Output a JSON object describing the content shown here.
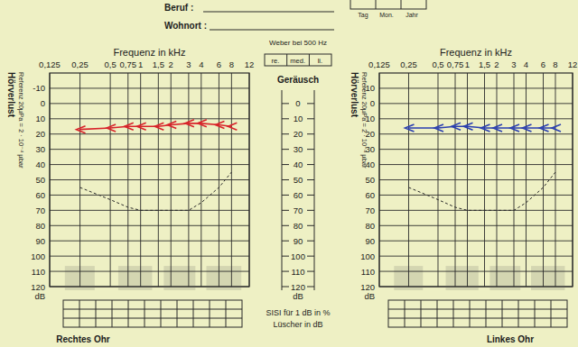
{
  "form": {
    "occupation": "Beruf :",
    "residence": "Wohnort :",
    "date_fields": [
      "Tag",
      "Mon.",
      "Jahr"
    ],
    "weber": {
      "title": "Weber bei 500 Hz",
      "cells": [
        "re.",
        "med.",
        "li."
      ]
    },
    "noise_scale": {
      "title": "Geräusch",
      "ticks": [
        0,
        10,
        20,
        30,
        40,
        50,
        60,
        70,
        80,
        90,
        100,
        110,
        120
      ],
      "unit": "dB"
    },
    "sisi": "SISI für 1 dB in %",
    "luescher": "Lüscher in dB"
  },
  "chart_data": [
    {
      "type": "line",
      "title": "Rechtes Ohr",
      "x_label": "Frequenz in kHz",
      "y_label": "Hörverlust",
      "y_note": "Referenz 20µPa = 2 · 10⁻⁴ µbar",
      "y_unit": "dB",
      "log": "x",
      "grid": true,
      "x": [
        0.25,
        0.5,
        0.75,
        1,
        1.5,
        2,
        3,
        4,
        6,
        8
      ],
      "xlim": [
        0.125,
        12
      ],
      "xticks": [
        {
          "value": 0.125,
          "label": "0,125"
        },
        {
          "value": 0.25,
          "label": "0,25"
        },
        {
          "value": 0.5,
          "label": "0,5"
        },
        {
          "value": 0.75,
          "label": "0,75"
        },
        1,
        {
          "value": 1.5,
          "label": "1,5"
        },
        2,
        3,
        4,
        6,
        8,
        12
      ],
      "ylim": [
        -20,
        120
      ],
      "yticks": [
        -10,
        0,
        10,
        20,
        30,
        40,
        50,
        60,
        70,
        80,
        90,
        100,
        110,
        120
      ],
      "series": [
        {
          "color": "#d8232a",
          "marker": "bracket",
          "line_style": "solid",
          "values": [
            17,
            16,
            15,
            15,
            15,
            14,
            13,
            13,
            14,
            15
          ]
        },
        {
          "color": "#2a2a2a",
          "line_style": "dashed",
          "values": [
            55,
            63,
            68,
            70,
            70,
            70,
            70,
            65,
            55,
            45
          ]
        }
      ]
    },
    {
      "type": "line",
      "title": "Linkes Ohr",
      "x_label": "Frequenz in kHz",
      "y_label": "Hörverlust",
      "y_note": "Referenz 20µPa = 2 · 10⁻⁴ µbar",
      "y_unit": "dB",
      "log": "x",
      "grid": true,
      "x": [
        0.25,
        0.5,
        0.75,
        1,
        1.5,
        2,
        3,
        4,
        6,
        8
      ],
      "xlim": [
        0.125,
        12
      ],
      "xticks": [
        {
          "value": 0.125,
          "label": "0,125"
        },
        {
          "value": 0.25,
          "label": "0,25"
        },
        {
          "value": 0.5,
          "label": "0,5"
        },
        {
          "value": 0.75,
          "label": "0,75"
        },
        1,
        {
          "value": 1.5,
          "label": "1,5"
        },
        2,
        3,
        4,
        6,
        8,
        12
      ],
      "ylim": [
        -20,
        120
      ],
      "yticks": [
        -10,
        0,
        10,
        20,
        30,
        40,
        50,
        60,
        70,
        80,
        90,
        100,
        110,
        120
      ],
      "series": [
        {
          "color": "#2a3fb0",
          "marker": "bracket",
          "line_style": "solid",
          "values": [
            16,
            16,
            15,
            15,
            16,
            16,
            16,
            16,
            16,
            16
          ]
        },
        {
          "color": "#2a2a2a",
          "line_style": "dashed",
          "values": [
            55,
            63,
            68,
            70,
            70,
            70,
            70,
            65,
            55,
            45
          ]
        }
      ]
    }
  ]
}
